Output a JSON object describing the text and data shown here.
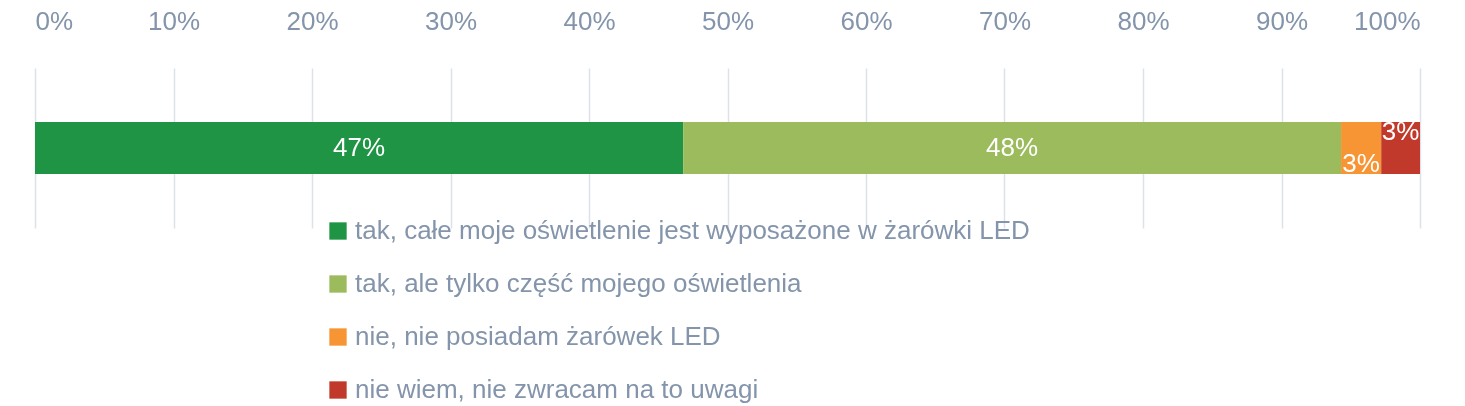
{
  "chart_data": {
    "type": "bar",
    "orientation": "horizontal",
    "stacked": true,
    "categories": [
      null
    ],
    "series": [
      {
        "name": "tak, całe moje oświetlenie jest wyposażone w żarówki LED",
        "color": "#1e9444",
        "values": [
          46.8
        ],
        "value_labels": [
          "47%"
        ]
      },
      {
        "name": "tak, ale tylko część mojego oświetlenia",
        "color": "#9bbb5c",
        "values": [
          47.5
        ],
        "value_labels": [
          "48%"
        ]
      },
      {
        "name": "nie, nie posiadam żarówek LED",
        "color": "#f79433",
        "values": [
          2.9
        ],
        "value_labels": [
          "3%"
        ]
      },
      {
        "name": "nie wiem, nie zwracam na to uwagi",
        "color": "#c0392b",
        "values": [
          2.8
        ],
        "value_labels": [
          "3%"
        ]
      }
    ],
    "xlim": [
      0,
      100
    ],
    "xticks": [
      {
        "value": 0,
        "label": "0%"
      },
      {
        "value": 10,
        "label": "10%"
      },
      {
        "value": 20,
        "label": "20%"
      },
      {
        "value": 30,
        "label": "30%"
      },
      {
        "value": 40,
        "label": "40%"
      },
      {
        "value": 50,
        "label": "50%"
      },
      {
        "value": 60,
        "label": "60%"
      },
      {
        "value": 70,
        "label": "70%"
      },
      {
        "value": 80,
        "label": "80%"
      },
      {
        "value": 90,
        "label": "90%"
      },
      {
        "value": 100,
        "label": "100%"
      }
    ],
    "grid": "x",
    "legend": "bottom"
  }
}
